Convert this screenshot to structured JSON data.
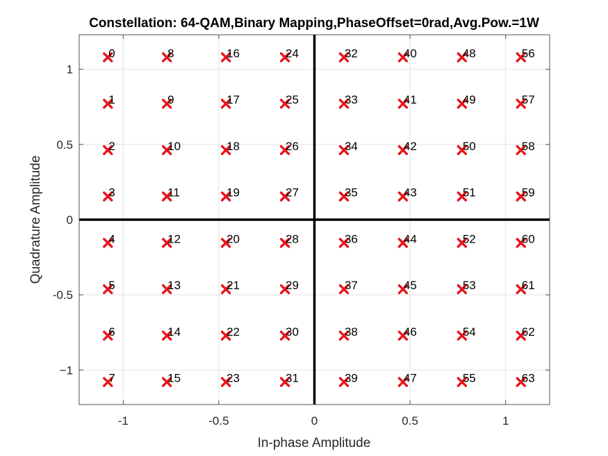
{
  "chart_data": {
    "type": "scatter",
    "title": "Constellation: 64-QAM,Binary Mapping,PhaseOffset=0rad,Avg.Pow.=1W",
    "xlabel": "In-phase Amplitude",
    "ylabel": "Quadrature Amplitude",
    "xlim": [
      -1.23,
      1.23
    ],
    "ylim": [
      -1.23,
      1.23
    ],
    "xticks": [
      -1,
      -0.5,
      0,
      0.5,
      1
    ],
    "yticks": [
      -1,
      -0.5,
      0,
      0.5,
      1
    ],
    "xtick_labels": [
      "-1",
      "-0.5",
      "0",
      "0.5",
      "1"
    ],
    "ytick_labels": [
      "−1",
      "-0.5",
      "0",
      "0.5",
      "1"
    ],
    "grid": true,
    "marker": "x",
    "marker_color": "#e8141b",
    "levels": [
      -1.0801,
      -0.7715,
      -0.4629,
      -0.1543,
      0.1543,
      0.4629,
      0.7715,
      1.0801
    ],
    "points": [
      {
        "x": -1.0801,
        "y": 1.0801,
        "label": "0"
      },
      {
        "x": -1.0801,
        "y": 0.7715,
        "label": "1"
      },
      {
        "x": -1.0801,
        "y": 0.4629,
        "label": "2"
      },
      {
        "x": -1.0801,
        "y": 0.1543,
        "label": "3"
      },
      {
        "x": -1.0801,
        "y": -0.1543,
        "label": "4"
      },
      {
        "x": -1.0801,
        "y": -0.4629,
        "label": "5"
      },
      {
        "x": -1.0801,
        "y": -0.7715,
        "label": "6"
      },
      {
        "x": -1.0801,
        "y": -1.0801,
        "label": "7"
      },
      {
        "x": -0.7715,
        "y": 1.0801,
        "label": "8"
      },
      {
        "x": -0.7715,
        "y": 0.7715,
        "label": "9"
      },
      {
        "x": -0.7715,
        "y": 0.4629,
        "label": "10"
      },
      {
        "x": -0.7715,
        "y": 0.1543,
        "label": "11"
      },
      {
        "x": -0.7715,
        "y": -0.1543,
        "label": "12"
      },
      {
        "x": -0.7715,
        "y": -0.4629,
        "label": "13"
      },
      {
        "x": -0.7715,
        "y": -0.7715,
        "label": "14"
      },
      {
        "x": -0.7715,
        "y": -1.0801,
        "label": "15"
      },
      {
        "x": -0.4629,
        "y": 1.0801,
        "label": "16"
      },
      {
        "x": -0.4629,
        "y": 0.7715,
        "label": "17"
      },
      {
        "x": -0.4629,
        "y": 0.4629,
        "label": "18"
      },
      {
        "x": -0.4629,
        "y": 0.1543,
        "label": "19"
      },
      {
        "x": -0.4629,
        "y": -0.1543,
        "label": "20"
      },
      {
        "x": -0.4629,
        "y": -0.4629,
        "label": "21"
      },
      {
        "x": -0.4629,
        "y": -0.7715,
        "label": "22"
      },
      {
        "x": -0.4629,
        "y": -1.0801,
        "label": "23"
      },
      {
        "x": -0.1543,
        "y": 1.0801,
        "label": "24"
      },
      {
        "x": -0.1543,
        "y": 0.7715,
        "label": "25"
      },
      {
        "x": -0.1543,
        "y": 0.4629,
        "label": "26"
      },
      {
        "x": -0.1543,
        "y": 0.1543,
        "label": "27"
      },
      {
        "x": -0.1543,
        "y": -0.1543,
        "label": "28"
      },
      {
        "x": -0.1543,
        "y": -0.4629,
        "label": "29"
      },
      {
        "x": -0.1543,
        "y": -0.7715,
        "label": "30"
      },
      {
        "x": -0.1543,
        "y": -1.0801,
        "label": "31"
      },
      {
        "x": 0.1543,
        "y": 1.0801,
        "label": "32"
      },
      {
        "x": 0.1543,
        "y": 0.7715,
        "label": "33"
      },
      {
        "x": 0.1543,
        "y": 0.4629,
        "label": "34"
      },
      {
        "x": 0.1543,
        "y": 0.1543,
        "label": "35"
      },
      {
        "x": 0.1543,
        "y": -0.1543,
        "label": "36"
      },
      {
        "x": 0.1543,
        "y": -0.4629,
        "label": "37"
      },
      {
        "x": 0.1543,
        "y": -0.7715,
        "label": "38"
      },
      {
        "x": 0.1543,
        "y": -1.0801,
        "label": "39"
      },
      {
        "x": 0.4629,
        "y": 1.0801,
        "label": "40"
      },
      {
        "x": 0.4629,
        "y": 0.7715,
        "label": "41"
      },
      {
        "x": 0.4629,
        "y": 0.4629,
        "label": "42"
      },
      {
        "x": 0.4629,
        "y": 0.1543,
        "label": "43"
      },
      {
        "x": 0.4629,
        "y": -0.1543,
        "label": "44"
      },
      {
        "x": 0.4629,
        "y": -0.4629,
        "label": "45"
      },
      {
        "x": 0.4629,
        "y": -0.7715,
        "label": "46"
      },
      {
        "x": 0.4629,
        "y": -1.0801,
        "label": "47"
      },
      {
        "x": 0.7715,
        "y": 1.0801,
        "label": "48"
      },
      {
        "x": 0.7715,
        "y": 0.7715,
        "label": "49"
      },
      {
        "x": 0.7715,
        "y": 0.4629,
        "label": "50"
      },
      {
        "x": 0.7715,
        "y": 0.1543,
        "label": "51"
      },
      {
        "x": 0.7715,
        "y": -0.1543,
        "label": "52"
      },
      {
        "x": 0.7715,
        "y": -0.4629,
        "label": "53"
      },
      {
        "x": 0.7715,
        "y": -0.7715,
        "label": "54"
      },
      {
        "x": 0.7715,
        "y": -1.0801,
        "label": "55"
      },
      {
        "x": 1.0801,
        "y": 1.0801,
        "label": "56"
      },
      {
        "x": 1.0801,
        "y": 0.7715,
        "label": "57"
      },
      {
        "x": 1.0801,
        "y": 0.4629,
        "label": "58"
      },
      {
        "x": 1.0801,
        "y": 0.1543,
        "label": "59"
      },
      {
        "x": 1.0801,
        "y": -0.1543,
        "label": "60"
      },
      {
        "x": 1.0801,
        "y": -0.4629,
        "label": "61"
      },
      {
        "x": 1.0801,
        "y": -0.7715,
        "label": "62"
      },
      {
        "x": 1.0801,
        "y": -1.0801,
        "label": "63"
      }
    ]
  }
}
